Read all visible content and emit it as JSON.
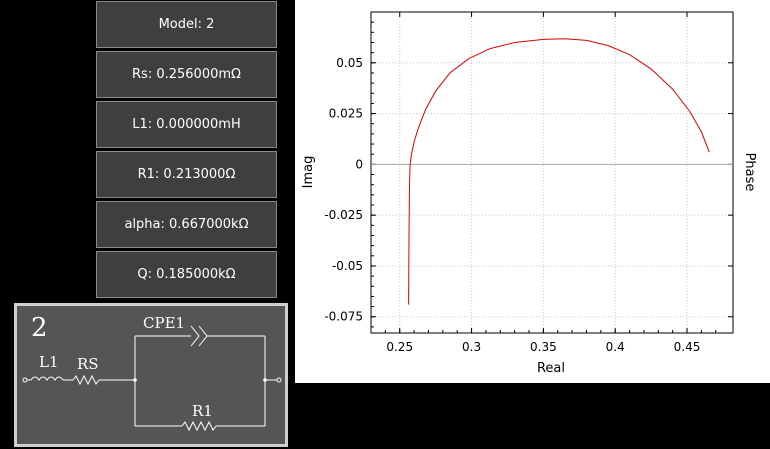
{
  "params": [
    {
      "label": "Model: 2"
    },
    {
      "label": "Rs: 0.256000mΩ"
    },
    {
      "label": "L1: 0.000000mH"
    },
    {
      "label": "R1: 0.213000Ω"
    },
    {
      "label": "alpha: 0.667000kΩ"
    },
    {
      "label": "Q: 0.185000kΩ"
    }
  ],
  "circuit": {
    "model_number": "2",
    "labels": {
      "l1": "L1",
      "rs": "RS",
      "cpe": "CPE1",
      "r1": "R1"
    }
  },
  "chart_data": {
    "type": "line",
    "xlabel": "Real",
    "ylabel": "Imag",
    "y2label": "Phase",
    "xlim": [
      0.23,
      0.482
    ],
    "ylim": [
      -0.083,
      0.075
    ],
    "xticks": [
      "0.25",
      "0.3",
      "0.35",
      "0.4",
      "0.45"
    ],
    "yticks": [
      "0.05",
      "0.025",
      "0",
      "-0.025",
      "-0.05",
      "-0.075"
    ],
    "grid": true,
    "series": [
      {
        "color": "#e00000",
        "x": [
          0.2562,
          0.2563,
          0.2565,
          0.2568,
          0.2572,
          0.2578,
          0.2585,
          0.26,
          0.263,
          0.268,
          0.275,
          0.285,
          0.298,
          0.313,
          0.33,
          0.35,
          0.365,
          0.38,
          0.395,
          0.41,
          0.425,
          0.44,
          0.452,
          0.46,
          0.4655
        ],
        "y": [
          -0.069,
          -0.05,
          -0.03,
          -0.01,
          0.0,
          0.003,
          0.006,
          0.011,
          0.018,
          0.027,
          0.036,
          0.045,
          0.052,
          0.057,
          0.06,
          0.0615,
          0.0618,
          0.061,
          0.0585,
          0.054,
          0.047,
          0.037,
          0.026,
          0.016,
          0.006
        ]
      }
    ]
  }
}
